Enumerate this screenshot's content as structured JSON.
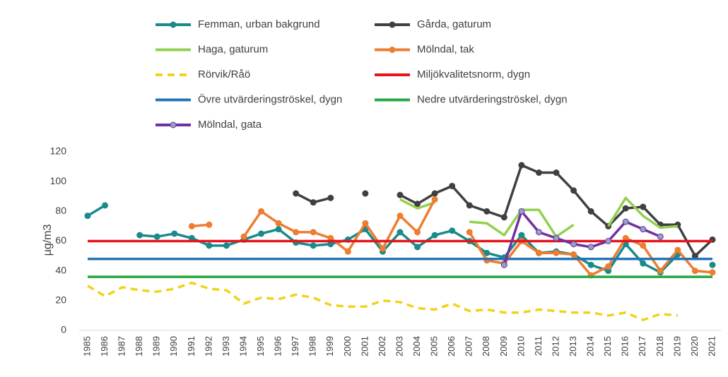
{
  "chart_data": {
    "type": "line",
    "y_label": "µg/m3",
    "categories": [
      "1985",
      "1986",
      "1987",
      "1988",
      "1989",
      "1990",
      "1991",
      "1992",
      "1993",
      "1994",
      "1995",
      "1996",
      "1997",
      "1998",
      "1999",
      "2000",
      "2001",
      "2002",
      "2003",
      "2004",
      "2005",
      "2006",
      "2007",
      "2008",
      "2009",
      "2010",
      "2011",
      "2012",
      "2013",
      "2014",
      "2015",
      "2016",
      "2017",
      "2018",
      "2019",
      "2020",
      "2021"
    ],
    "ylim": [
      0,
      120
    ],
    "yticks": [
      0,
      20,
      40,
      60,
      80,
      100,
      120
    ],
    "grid": false,
    "series": [
      {
        "name": "Femman, urban bakgrund",
        "color": "#1a8a8a",
        "marker": true,
        "dash": false,
        "values": [
          77,
          84,
          null,
          64,
          63,
          65,
          62,
          57,
          57,
          61,
          65,
          68,
          59,
          57,
          58,
          61,
          68,
          53,
          66,
          56,
          64,
          67,
          60,
          52,
          49,
          64,
          52,
          53,
          51,
          44,
          40,
          58,
          45,
          39,
          51,
          null,
          44
        ]
      },
      {
        "name": "Gårda, gaturum",
        "color": "#404040",
        "marker": true,
        "dash": false,
        "values": [
          null,
          null,
          null,
          null,
          null,
          null,
          null,
          null,
          null,
          null,
          null,
          null,
          92,
          86,
          89,
          null,
          92,
          null,
          91,
          85,
          92,
          97,
          84,
          80,
          76,
          111,
          106,
          106,
          94,
          80,
          70,
          82,
          83,
          71,
          71,
          50,
          61
        ]
      },
      {
        "name": "Haga, gaturum",
        "color": "#92d050",
        "marker": false,
        "dash": false,
        "values": [
          null,
          null,
          null,
          null,
          null,
          null,
          null,
          null,
          null,
          null,
          null,
          null,
          null,
          null,
          null,
          null,
          null,
          null,
          88,
          82,
          86,
          null,
          73,
          72,
          64,
          81,
          81,
          63,
          71,
          null,
          70,
          89,
          77,
          69,
          70,
          null,
          null
        ]
      },
      {
        "name": "Mölndal, tak",
        "color": "#ed7d31",
        "marker": true,
        "dash": false,
        "values": [
          null,
          null,
          null,
          null,
          null,
          null,
          70,
          71,
          null,
          63,
          80,
          72,
          66,
          66,
          62,
          53,
          72,
          55,
          77,
          66,
          88,
          null,
          66,
          47,
          45,
          60,
          52,
          52,
          51,
          37,
          43,
          62,
          57,
          40,
          54,
          40,
          39
        ]
      },
      {
        "name": "Rörvik/Råö",
        "color": "#f2d21b",
        "marker": false,
        "dash": true,
        "values": [
          30,
          23,
          29,
          27,
          26,
          28,
          32,
          28,
          27,
          18,
          22,
          21,
          24,
          22,
          17,
          16,
          16,
          20,
          19,
          15,
          14,
          18,
          13,
          14,
          12,
          12,
          14,
          13,
          12,
          12,
          10,
          12,
          7,
          11,
          10,
          null,
          null
        ]
      },
      {
        "name": "Miljökvalitetsnorm, dygn",
        "color": "#e8141b",
        "marker": false,
        "dash": false,
        "values": [
          60,
          60,
          60,
          60,
          60,
          60,
          60,
          60,
          60,
          60,
          60,
          60,
          60,
          60,
          60,
          60,
          60,
          60,
          60,
          60,
          60,
          60,
          60,
          60,
          60,
          60,
          60,
          60,
          60,
          60,
          60,
          60,
          60,
          60,
          60,
          60,
          60
        ]
      },
      {
        "name": "Övre utvärderingströskel, dygn",
        "color": "#2474b5",
        "marker": false,
        "dash": false,
        "values": [
          48,
          48,
          48,
          48,
          48,
          48,
          48,
          48,
          48,
          48,
          48,
          48,
          48,
          48,
          48,
          48,
          48,
          48,
          48,
          48,
          48,
          48,
          48,
          48,
          48,
          48,
          48,
          48,
          48,
          48,
          48,
          48,
          48,
          48,
          48,
          48,
          48
        ]
      },
      {
        "name": "Nedre utvärderingströskel, dygn",
        "color": "#27a845",
        "marker": false,
        "dash": false,
        "values": [
          36,
          36,
          36,
          36,
          36,
          36,
          36,
          36,
          36,
          36,
          36,
          36,
          36,
          36,
          36,
          36,
          36,
          36,
          36,
          36,
          36,
          36,
          36,
          36,
          36,
          36,
          36,
          36,
          36,
          36,
          36,
          36,
          36,
          36,
          36,
          36,
          36
        ]
      },
      {
        "name": "Mölndal, gata",
        "color": "#7030a0",
        "marker": true,
        "marker_color": "#8fa2c8",
        "dash": false,
        "values": [
          null,
          null,
          null,
          null,
          null,
          null,
          null,
          null,
          null,
          null,
          null,
          null,
          null,
          null,
          null,
          null,
          null,
          null,
          null,
          null,
          null,
          null,
          null,
          null,
          44,
          80,
          66,
          62,
          58,
          56,
          60,
          73,
          68,
          63,
          null,
          null,
          null
        ]
      }
    ]
  }
}
